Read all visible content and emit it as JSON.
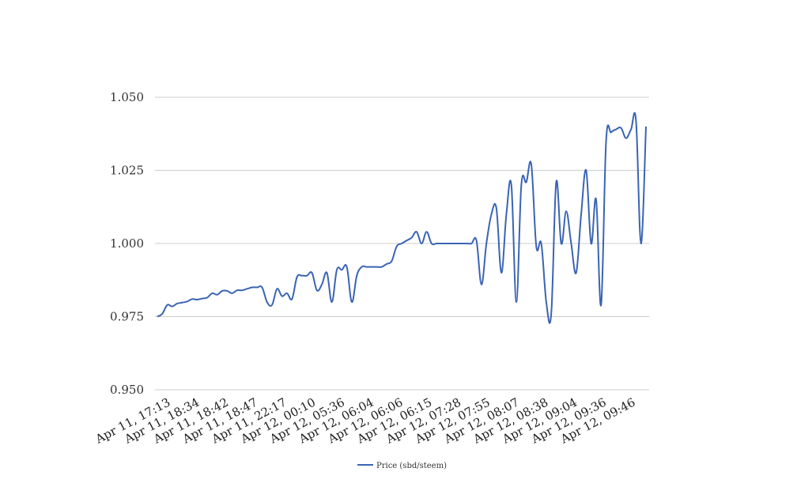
{
  "chart_data": {
    "type": "line",
    "title": "",
    "xlabel": "",
    "ylabel": "",
    "ylim": [
      0.95,
      1.05
    ],
    "yticks": [
      "0.950",
      "0.975",
      "1.000",
      "1.025",
      "1.050"
    ],
    "grid": true,
    "legend_position": "bottom",
    "colors": {
      "line": "#3a64b4",
      "grid": "#cccccc"
    },
    "x_tick_labels": [
      "Apr 11, 17:13",
      "Apr 11, 18:34",
      "Apr 11, 18:42",
      "Apr 11, 18:47",
      "Apr 11, 22:17",
      "Apr 12, 00:10",
      "Apr 12, 05:36",
      "Apr 12, 06:04",
      "Apr 12, 06:06",
      "Apr 12, 06:15",
      "Apr 12, 07:28",
      "Apr 12, 07:55",
      "Apr 12, 08:07",
      "Apr 12, 08:38",
      "Apr 12, 09:04",
      "Apr 12, 09:36",
      "Apr 12, 09:46"
    ],
    "series": [
      {
        "name": "Price (sbd/steem)",
        "values": [
          0.975,
          0.976,
          0.979,
          0.9785,
          0.9795,
          0.9798,
          0.9802,
          0.981,
          0.9808,
          0.9812,
          0.9815,
          0.983,
          0.9825,
          0.9838,
          0.9838,
          0.983,
          0.984,
          0.984,
          0.9845,
          0.985,
          0.985,
          0.985,
          0.98,
          0.979,
          0.9845,
          0.982,
          0.983,
          0.981,
          0.9885,
          0.989,
          0.989,
          0.99,
          0.984,
          0.986,
          0.99,
          0.98,
          0.991,
          0.991,
          0.992,
          0.98,
          0.989,
          0.992,
          0.992,
          0.992,
          0.992,
          0.992,
          0.993,
          0.994,
          0.999,
          1.0,
          1.001,
          1.002,
          1.004,
          1.0,
          1.004,
          1.0,
          1.0,
          1.0,
          1.0,
          1.0,
          1.0,
          1.0,
          1.0,
          1.0,
          1.001,
          0.986,
          1.0,
          1.01,
          1.012,
          0.99,
          1.01,
          1.02,
          0.98,
          1.02,
          1.021,
          1.027,
          0.999,
          1.0,
          0.98,
          0.976,
          1.021,
          1.0,
          1.011,
          1.0,
          0.99,
          1.01,
          1.025,
          1.0,
          1.015,
          0.979,
          1.035,
          1.038,
          1.039,
          1.0395,
          1.036,
          1.039,
          1.042,
          1.0,
          1.04
        ]
      }
    ]
  }
}
